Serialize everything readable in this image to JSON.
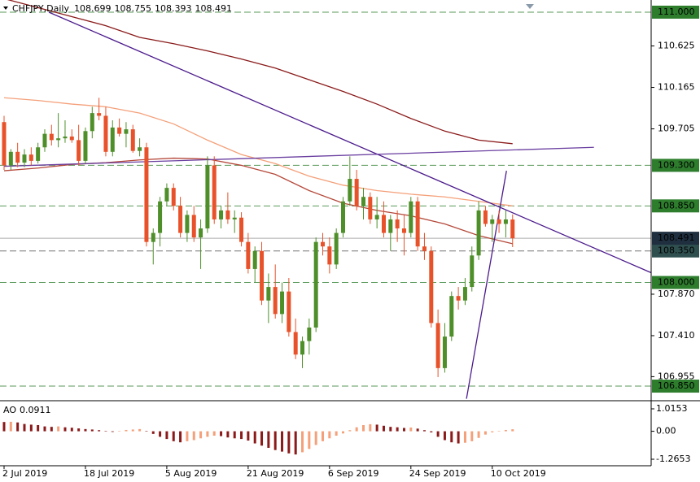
{
  "chart_data": {
    "type": "candlestick",
    "symbol": "CHFJPY,Daily",
    "categories": [
      "2 Jul 2019",
      null,
      null,
      null,
      null,
      null,
      null,
      null,
      null,
      null,
      null,
      null,
      "18 Jul 2019",
      null,
      null,
      null,
      null,
      null,
      null,
      null,
      null,
      null,
      null,
      null,
      "5 Aug 2019",
      null,
      null,
      null,
      null,
      null,
      null,
      null,
      null,
      null,
      null,
      null,
      "21 Aug 2019",
      null,
      null,
      null,
      null,
      null,
      null,
      null,
      null,
      null,
      null,
      null,
      "6 Sep 2019",
      null,
      null,
      null,
      null,
      null,
      null,
      null,
      null,
      null,
      null,
      null,
      "24 Sep 2019",
      null,
      null,
      null,
      null,
      null,
      null,
      null,
      null,
      null,
      null,
      null,
      "10 Oct 2019",
      null,
      null,
      null
    ],
    "ohlc": [
      [
        109.78,
        109.85,
        109.25,
        109.3
      ],
      [
        109.3,
        109.48,
        109.25,
        109.45
      ],
      [
        109.45,
        109.55,
        109.28,
        109.33
      ],
      [
        109.33,
        109.48,
        109.28,
        109.42
      ],
      [
        109.42,
        109.5,
        109.3,
        109.35
      ],
      [
        109.35,
        109.55,
        109.32,
        109.5
      ],
      [
        109.5,
        109.7,
        109.45,
        109.65
      ],
      [
        109.65,
        109.75,
        109.52,
        109.58
      ],
      [
        109.58,
        109.88,
        109.5,
        109.6
      ],
      [
        109.6,
        109.8,
        109.55,
        109.62
      ],
      [
        109.62,
        109.7,
        109.55,
        109.58
      ],
      [
        109.58,
        109.75,
        109.3,
        109.35
      ],
      [
        109.35,
        109.72,
        109.32,
        109.68
      ],
      [
        109.68,
        109.95,
        109.6,
        109.88
      ],
      [
        109.88,
        110.05,
        109.8,
        109.85
      ],
      [
        109.85,
        109.95,
        109.4,
        109.45
      ],
      [
        109.45,
        109.8,
        109.4,
        109.72
      ],
      [
        109.72,
        109.82,
        109.62,
        109.65
      ],
      [
        109.65,
        109.78,
        109.5,
        109.7
      ],
      [
        109.7,
        109.75,
        109.44,
        109.46
      ],
      [
        109.46,
        109.6,
        109.4,
        109.5
      ],
      [
        109.5,
        109.55,
        108.4,
        108.45
      ],
      [
        108.45,
        108.6,
        108.2,
        108.55
      ],
      [
        108.55,
        108.95,
        108.4,
        108.9
      ],
      [
        108.9,
        109.1,
        108.85,
        109.05
      ],
      [
        109.05,
        109.1,
        108.8,
        108.85
      ],
      [
        108.85,
        108.95,
        108.5,
        108.55
      ],
      [
        108.55,
        108.8,
        108.45,
        108.75
      ],
      [
        108.75,
        108.85,
        108.45,
        108.5
      ],
      [
        108.5,
        108.7,
        108.15,
        108.6
      ],
      [
        108.6,
        109.4,
        108.55,
        109.3
      ],
      [
        109.3,
        109.4,
        108.65,
        108.7
      ],
      [
        108.7,
        108.85,
        108.6,
        108.8
      ],
      [
        108.8,
        109.0,
        108.65,
        108.7
      ],
      [
        108.7,
        108.8,
        108.55,
        108.72
      ],
      [
        108.72,
        108.78,
        108.4,
        108.45
      ],
      [
        108.45,
        108.55,
        108.1,
        108.15
      ],
      [
        108.15,
        108.4,
        108.0,
        108.35
      ],
      [
        108.35,
        108.45,
        107.75,
        107.8
      ],
      [
        107.8,
        108.1,
        107.55,
        107.95
      ],
      [
        107.95,
        108.2,
        107.6,
        107.65
      ],
      [
        107.65,
        108.0,
        107.55,
        107.9
      ],
      [
        107.9,
        108.05,
        107.4,
        107.45
      ],
      [
        107.45,
        107.6,
        107.15,
        107.2
      ],
      [
        107.2,
        107.4,
        107.05,
        107.35
      ],
      [
        107.35,
        107.6,
        107.2,
        107.5
      ],
      [
        107.5,
        108.5,
        107.45,
        108.45
      ],
      [
        108.45,
        108.55,
        108.3,
        108.4
      ],
      [
        108.4,
        108.5,
        108.1,
        108.2
      ],
      [
        108.2,
        108.6,
        108.15,
        108.55
      ],
      [
        108.55,
        108.95,
        108.5,
        108.9
      ],
      [
        108.9,
        109.4,
        108.85,
        109.15
      ],
      [
        109.15,
        109.25,
        108.8,
        108.85
      ],
      [
        108.85,
        109.05,
        108.7,
        108.95
      ],
      [
        108.95,
        109.0,
        108.65,
        108.7
      ],
      [
        108.7,
        108.95,
        108.6,
        108.75
      ],
      [
        108.75,
        108.9,
        108.5,
        108.55
      ],
      [
        108.55,
        108.75,
        108.35,
        108.7
      ],
      [
        108.7,
        108.8,
        108.45,
        108.6
      ],
      [
        108.6,
        108.75,
        108.3,
        108.55
      ],
      [
        108.55,
        108.95,
        108.5,
        108.9
      ],
      [
        108.9,
        108.95,
        108.35,
        108.4
      ],
      [
        108.4,
        108.55,
        108.25,
        108.35
      ],
      [
        108.35,
        108.4,
        107.5,
        107.55
      ],
      [
        107.55,
        107.7,
        106.95,
        107.05
      ],
      [
        107.05,
        107.55,
        107.0,
        107.4
      ],
      [
        107.4,
        107.9,
        107.35,
        107.85
      ],
      [
        107.85,
        107.95,
        107.7,
        107.8
      ],
      [
        107.8,
        108.05,
        107.75,
        107.95
      ],
      [
        107.95,
        108.4,
        107.9,
        108.3
      ],
      [
        108.3,
        108.9,
        108.25,
        108.8
      ],
      [
        108.8,
        108.85,
        108.62,
        108.65
      ],
      [
        108.65,
        108.75,
        108.45,
        108.7
      ],
      [
        108.7,
        108.8,
        108.55,
        108.65
      ],
      [
        108.65,
        108.8,
        108.5,
        108.7
      ],
      [
        108.699,
        108.755,
        108.393,
        108.491
      ]
    ],
    "up_color": "#4e8f2a",
    "down_color": "#e8522a",
    "ylim": [
      106.697,
      111.135
    ],
    "yticks": [
      110.625,
      110.165,
      109.705,
      {
        "value": 107.87,
        "label": "107.870"
      },
      {
        "value": 107.41,
        "label": "107.410"
      },
      106.955
    ],
    "levels": [
      {
        "value": 111,
        "label": "111.000",
        "color": "#2d7d2d"
      },
      {
        "value": 109.3,
        "label": "109.300",
        "color": "#2d7d2d"
      },
      {
        "value": 108.85,
        "label": "108.850",
        "color": "#2d7d2d"
      },
      {
        "value": 108.35,
        "label": "108.350",
        "color": "#2f4f4f"
      },
      {
        "value": 108,
        "label": "108.000",
        "color": "#2d7d2d"
      },
      {
        "value": 106.85,
        "label": "106.850",
        "color": "#2d7d2d"
      }
    ],
    "current_color": "#1f2f3f",
    "moving_averages": [
      {
        "color": "#8b1a1a",
        "x": [
          0,
          5,
          10,
          15,
          20,
          25,
          30,
          35,
          40,
          45,
          50,
          55,
          60,
          65,
          70,
          75
        ],
        "values": [
          111.15,
          111.05,
          110.95,
          110.85,
          110.72,
          110.65,
          110.57,
          110.48,
          110.38,
          110.25,
          110.12,
          109.98,
          109.82,
          109.68,
          109.58,
          109.54
        ]
      },
      {
        "color": "#f4a07a",
        "x": [
          0,
          5,
          10,
          15,
          20,
          25,
          30,
          35,
          40,
          45,
          50,
          55,
          60,
          65,
          70,
          75
        ],
        "values": [
          110.05,
          110.02,
          109.98,
          109.95,
          109.88,
          109.76,
          109.58,
          109.42,
          109.32,
          109.18,
          109.08,
          109.02,
          108.98,
          108.95,
          108.9,
          108.85
        ]
      },
      {
        "color": "#b5483a",
        "x": [
          0,
          5,
          10,
          15,
          20,
          25,
          30,
          35,
          40,
          45,
          50,
          55,
          60,
          65,
          70,
          75
        ],
        "values": [
          109.24,
          109.27,
          109.31,
          109.33,
          109.36,
          109.38,
          109.37,
          109.3,
          109.2,
          109.02,
          108.88,
          108.8,
          108.74,
          108.65,
          108.52,
          108.43
        ]
      }
    ],
    "trendlines": [
      {
        "color": "#4b1a8c",
        "x": [
          6.6,
          95.4
        ],
        "values": [
          111.0,
          108.11
        ]
      },
      {
        "color": "#4b1a8c",
        "x": [
          68.2,
          74.1
        ],
        "values": [
          106.71,
          109.24
        ]
      },
      {
        "color": "#6a3fa0",
        "x": [
          0,
          87
        ],
        "values": [
          109.29,
          109.5
        ]
      }
    ],
    "ao": {
      "name": "AO",
      "values": [
        0.42,
        0.43,
        0.4,
        0.33,
        0.3,
        0.28,
        0.22,
        0.2,
        0.22,
        0.18,
        0.16,
        0.13,
        0.1,
        0.08,
        0.05,
        0.02,
        -0.03,
        0.02,
        0.06,
        0.08,
        0.1,
        0.02,
        -0.12,
        -0.25,
        -0.35,
        -0.45,
        -0.5,
        -0.45,
        -0.4,
        -0.32,
        -0.25,
        -0.2,
        -0.22,
        -0.28,
        -0.32,
        -0.35,
        -0.42,
        -0.55,
        -0.65,
        -0.75,
        -0.85,
        -0.92,
        -1.0,
        -1.05,
        -0.95,
        -0.8,
        -0.62,
        -0.45,
        -0.32,
        -0.2,
        -0.1,
        0.05,
        0.18,
        0.28,
        0.32,
        0.3,
        0.25,
        0.2,
        0.18,
        0.15,
        0.17,
        0.12,
        0.05,
        -0.05,
        -0.25,
        -0.4,
        -0.5,
        -0.55,
        -0.52,
        -0.45,
        -0.3,
        -0.15,
        -0.05,
        0.02,
        0.06,
        0.0911
      ],
      "up_color": "#f4a07a",
      "down_color": "#8b1a1a",
      "ylim": [
        -1.56,
        1.309
      ],
      "yticks": [
        1.0153,
        {
          "value": 0,
          "label": "0.00"
        },
        -1.2653
      ]
    }
  }
}
